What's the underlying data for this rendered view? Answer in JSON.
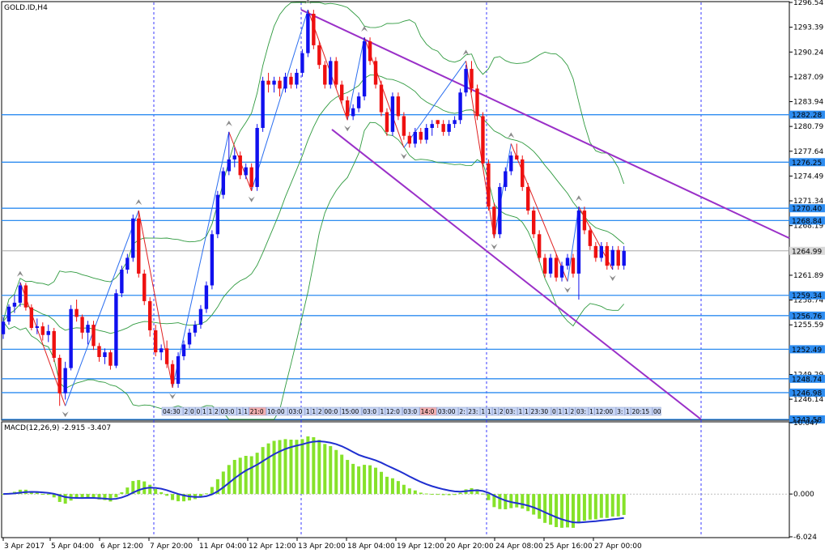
{
  "window": {
    "title": "GOLD.ID,H4"
  },
  "colors": {
    "background": "#ffffff",
    "grid": "#3a3aff",
    "bull": "#1010ee",
    "bear": "#ee1010",
    "bands": "#2f9a3f",
    "channel": "#9a30c8",
    "hline": "#2d8cf0",
    "zigzag_up": "#2a6ef0",
    "zigzag_down": "#e02020",
    "macd_hist": "#86e22a",
    "macd_signal": "#1f2fd0",
    "current_label_bg": "#d8d8d8",
    "price_label_bg": "#2d8cf0"
  },
  "chart_data": [
    {
      "type": "candlestick",
      "title": "GOLD.ID,H4",
      "ylim": [
        1243.58,
        1296.54
      ],
      "price_ticks": [
        "1296.54",
        "1293.39",
        "1290.24",
        "1287.09",
        "1283.94",
        "1280.79",
        "1277.64",
        "1274.49",
        "1271.34",
        "1268.19",
        "1265.04",
        "1261.89",
        "1258.74",
        "1255.59",
        "1252.44",
        "1249.29",
        "1246.14"
      ],
      "current_price": "1264.99",
      "horizontal_levels": [
        "1282.28",
        "1276.25",
        "1270.40",
        "1268.84",
        "1259.34",
        "1256.76",
        "1252.49",
        "1248.74",
        "1246.98",
        "1243.58"
      ],
      "x_labels": [
        "3 Apr 2017",
        "5 Apr 04:00",
        "6 Apr 12:00",
        "7 Apr 20:00",
        "11 Apr 04:00",
        "12 Apr 12:00",
        "13 Apr 20:00",
        "18 Apr 04:00",
        "19 Apr 12:00",
        "20 Apr 20:00",
        "24 Apr 08:00",
        "25 Apr 16:00",
        "27 Apr 00:00"
      ],
      "candles": [
        [
          1254.4,
          1256.6,
          1253.8,
          1256.0
        ],
        [
          1256.0,
          1258.2,
          1255.6,
          1257.9
        ],
        [
          1257.9,
          1259.4,
          1257.1,
          1258.4
        ],
        [
          1258.4,
          1261.0,
          1257.9,
          1260.6
        ],
        [
          1260.6,
          1260.9,
          1257.4,
          1257.8
        ],
        [
          1257.8,
          1258.2,
          1254.9,
          1255.2
        ],
        [
          1255.2,
          1256.4,
          1254.4,
          1255.4
        ],
        [
          1255.4,
          1255.9,
          1253.6,
          1254.3
        ],
        [
          1254.3,
          1255.6,
          1253.4,
          1254.8
        ],
        [
          1254.8,
          1255.2,
          1250.9,
          1251.4
        ],
        [
          1251.4,
          1251.8,
          1245.3,
          1246.9
        ],
        [
          1246.9,
          1250.9,
          1246.1,
          1250.1
        ],
        [
          1250.1,
          1258.1,
          1249.8,
          1257.6
        ],
        [
          1257.6,
          1258.8,
          1256.0,
          1256.6
        ],
        [
          1256.6,
          1256.9,
          1253.8,
          1254.6
        ],
        [
          1254.6,
          1256.1,
          1253.1,
          1255.6
        ],
        [
          1255.6,
          1256.1,
          1252.4,
          1252.9
        ],
        [
          1252.9,
          1253.3,
          1250.9,
          1251.5
        ],
        [
          1251.5,
          1252.6,
          1250.6,
          1252.1
        ],
        [
          1252.1,
          1252.4,
          1249.9,
          1250.4
        ],
        [
          1250.4,
          1260.1,
          1250.1,
          1259.6
        ],
        [
          1259.6,
          1263.1,
          1259.1,
          1262.6
        ],
        [
          1262.6,
          1264.6,
          1262.1,
          1264.1
        ],
        [
          1264.1,
          1269.6,
          1263.6,
          1269.1
        ],
        [
          1269.1,
          1270.1,
          1261.6,
          1262.1
        ],
        [
          1262.1,
          1262.6,
          1258.1,
          1258.6
        ],
        [
          1258.6,
          1259.1,
          1254.1,
          1254.9
        ],
        [
          1254.9,
          1255.6,
          1251.6,
          1252.1
        ],
        [
          1252.1,
          1253.1,
          1251.1,
          1252.6
        ],
        [
          1252.6,
          1253.6,
          1250.1,
          1250.6
        ],
        [
          1250.6,
          1251.1,
          1247.6,
          1248.1
        ],
        [
          1248.1,
          1252.1,
          1247.6,
          1251.6
        ],
        [
          1251.6,
          1253.6,
          1251.1,
          1253.1
        ],
        [
          1253.1,
          1255.1,
          1252.6,
          1254.6
        ],
        [
          1254.6,
          1256.1,
          1254.1,
          1255.6
        ],
        [
          1255.6,
          1258.1,
          1255.1,
          1257.6
        ],
        [
          1257.6,
          1261.1,
          1257.1,
          1260.6
        ],
        [
          1260.6,
          1267.6,
          1260.1,
          1267.1
        ],
        [
          1267.1,
          1272.6,
          1266.6,
          1272.1
        ],
        [
          1272.1,
          1275.6,
          1271.6,
          1275.1
        ],
        [
          1275.1,
          1280.1,
          1274.6,
          1276.6
        ],
        [
          1276.6,
          1278.1,
          1275.6,
          1277.1
        ],
        [
          1277.1,
          1277.6,
          1274.1,
          1274.6
        ],
        [
          1274.6,
          1276.1,
          1274.1,
          1275.6
        ],
        [
          1275.6,
          1276.1,
          1272.6,
          1273.1
        ],
        [
          1273.1,
          1281.1,
          1272.6,
          1280.6
        ],
        [
          1280.6,
          1287.1,
          1280.1,
          1286.6
        ],
        [
          1286.6,
          1287.6,
          1285.1,
          1286.1
        ],
        [
          1286.1,
          1287.1,
          1285.1,
          1286.6
        ],
        [
          1286.6,
          1287.1,
          1284.6,
          1285.6
        ],
        [
          1285.6,
          1287.6,
          1285.1,
          1287.1
        ],
        [
          1287.1,
          1287.6,
          1285.6,
          1286.1
        ],
        [
          1286.1,
          1288.1,
          1285.6,
          1287.6
        ],
        [
          1287.6,
          1290.6,
          1287.1,
          1290.1
        ],
        [
          1290.1,
          1295.6,
          1289.6,
          1295.1
        ],
        [
          1295.1,
          1295.6,
          1290.6,
          1291.1
        ],
        [
          1291.1,
          1291.6,
          1288.1,
          1288.6
        ],
        [
          1288.6,
          1289.1,
          1285.6,
          1286.1
        ],
        [
          1286.1,
          1289.6,
          1285.6,
          1289.1
        ],
        [
          1289.1,
          1289.6,
          1285.6,
          1286.1
        ],
        [
          1286.1,
          1286.6,
          1283.6,
          1284.1
        ],
        [
          1284.1,
          1284.6,
          1281.6,
          1282.1
        ],
        [
          1282.1,
          1283.6,
          1281.6,
          1283.1
        ],
        [
          1283.1,
          1285.1,
          1282.6,
          1284.6
        ],
        [
          1284.6,
          1292.1,
          1284.1,
          1291.6
        ],
        [
          1291.6,
          1292.1,
          1288.6,
          1289.1
        ],
        [
          1289.1,
          1289.6,
          1285.6,
          1286.1
        ],
        [
          1286.1,
          1286.6,
          1282.1,
          1282.6
        ],
        [
          1282.6,
          1283.1,
          1279.6,
          1280.1
        ],
        [
          1280.1,
          1285.1,
          1279.6,
          1284.6
        ],
        [
          1284.6,
          1285.1,
          1281.6,
          1282.1
        ],
        [
          1282.1,
          1282.6,
          1279.1,
          1279.6
        ],
        [
          1279.6,
          1280.1,
          1278.1,
          1278.6
        ],
        [
          1278.6,
          1280.6,
          1278.1,
          1280.1
        ],
        [
          1280.1,
          1280.6,
          1278.6,
          1279.1
        ],
        [
          1279.1,
          1281.1,
          1278.6,
          1280.6
        ],
        [
          1280.6,
          1281.6,
          1279.6,
          1281.1
        ],
        [
          1281.6,
          1281.6,
          1280.6,
          1281.1
        ],
        [
          1281.1,
          1281.6,
          1279.6,
          1280.1
        ],
        [
          1280.1,
          1281.6,
          1279.6,
          1281.1
        ],
        [
          1281.1,
          1282.1,
          1280.6,
          1281.6
        ],
        [
          1281.6,
          1285.6,
          1281.1,
          1285.1
        ],
        [
          1285.1,
          1288.6,
          1284.6,
          1288.1
        ],
        [
          1288.1,
          1289.1,
          1285.1,
          1285.6
        ],
        [
          1285.6,
          1286.1,
          1281.6,
          1282.1
        ],
        [
          1282.1,
          1282.6,
          1275.6,
          1276.1
        ],
        [
          1276.1,
          1276.6,
          1270.1,
          1270.6
        ],
        [
          1270.6,
          1271.1,
          1266.6,
          1267.1
        ],
        [
          1267.1,
          1273.6,
          1266.6,
          1273.1
        ],
        [
          1273.1,
          1275.6,
          1272.6,
          1275.1
        ],
        [
          1275.1,
          1277.6,
          1274.6,
          1277.1
        ],
        [
          1277.1,
          1278.6,
          1276.6,
          1276.6
        ],
        [
          1276.6,
          1277.1,
          1272.6,
          1273.1
        ],
        [
          1273.1,
          1273.6,
          1269.6,
          1270.1
        ],
        [
          1270.1,
          1270.6,
          1266.6,
          1267.1
        ],
        [
          1267.1,
          1267.6,
          1263.6,
          1264.1
        ],
        [
          1264.1,
          1264.6,
          1261.6,
          1262.1
        ],
        [
          1262.1,
          1264.6,
          1261.6,
          1264.1
        ],
        [
          1264.1,
          1264.6,
          1261.1,
          1261.6
        ],
        [
          1261.6,
          1263.6,
          1261.1,
          1263.1
        ],
        [
          1263.1,
          1264.6,
          1262.6,
          1264.1
        ],
        [
          1264.1,
          1264.6,
          1261.6,
          1262.1
        ],
        [
          1262.1,
          1270.6,
          1258.8,
          1270.1
        ],
        [
          1270.1,
          1270.6,
          1267.1,
          1267.6
        ],
        [
          1267.6,
          1268.1,
          1265.1,
          1265.6
        ],
        [
          1265.6,
          1266.1,
          1263.6,
          1264.1
        ],
        [
          1264.1,
          1266.1,
          1263.6,
          1265.6
        ],
        [
          1265.6,
          1266.1,
          1262.6,
          1263.1
        ],
        [
          1263.1,
          1265.6,
          1262.6,
          1265.1
        ],
        [
          1265.1,
          1265.6,
          1262.6,
          1263.1
        ],
        [
          1263.1,
          1265.6,
          1262.6,
          1264.99
        ]
      ]
    },
    {
      "type": "bar+line",
      "title": "MACD(12,26,9) -2.915 -3.407",
      "ylim": [
        -6.024,
        10.047
      ],
      "y_ticks": [
        "10.047",
        "0.000",
        "-6.024"
      ]
    }
  ],
  "time_strip": [
    "04:30",
    "2",
    "0",
    "0",
    "1",
    "1",
    "2",
    "03:0",
    "1",
    "1",
    "21:0",
    "10:00",
    "03:0",
    "1",
    "1",
    "2",
    "00:0",
    "15:00",
    "03:0",
    "1",
    "12:0",
    "03:0",
    "14:0",
    "03:00",
    "2:",
    "23:",
    "1",
    "1",
    "1",
    "2",
    "03:",
    "1",
    "1",
    "23:30",
    "0",
    "1",
    "1",
    "2",
    "03:",
    "1",
    "12:00",
    "3:",
    "1",
    "20:15",
    "00"
  ]
}
